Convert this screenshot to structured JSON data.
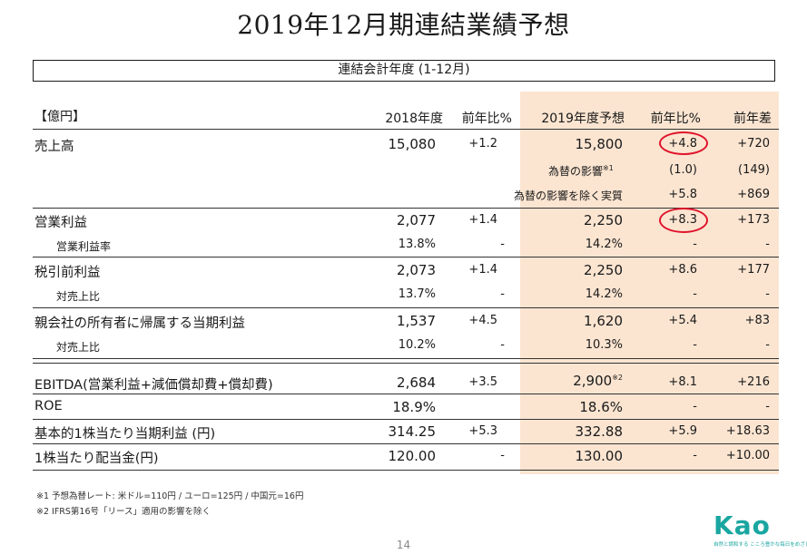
{
  "title": "2019年12月期連結業績予想",
  "period": "連結会計年度 (1-12月)",
  "unit": "【億円】",
  "columns": [
    "2018年度",
    "前年比%",
    "2019年度予想",
    "前年比%",
    "前年差"
  ],
  "rows": {
    "sales": {
      "label": "売上高",
      "y2018": "15,080",
      "yoy2018": "+1.2",
      "f2019": "15,800",
      "yoy": "+4.8",
      "diff": "+720"
    },
    "fx": {
      "label": "為替の影響",
      "note": "※1",
      "yoy": "(1.0)",
      "diff": "(149)"
    },
    "exfx": {
      "label": "為替の影響を除く実質",
      "yoy": "+5.8",
      "diff": "+869"
    },
    "op": {
      "label": "営業利益",
      "y2018": "2,077",
      "yoy2018": "+1.4",
      "f2019": "2,250",
      "yoy": "+8.3",
      "diff": "+173"
    },
    "opm": {
      "label": "営業利益率",
      "y2018": "13.8%",
      "yoy2018": "-",
      "f2019": "14.2%",
      "yoy": "-",
      "diff": "-"
    },
    "pbt": {
      "label": "税引前利益",
      "y2018": "2,073",
      "yoy2018": "+1.4",
      "f2019": "2,250",
      "yoy": "+8.6",
      "diff": "+177"
    },
    "pbtr": {
      "label": "対売上比",
      "y2018": "13.7%",
      "yoy2018": "-",
      "f2019": "14.2%",
      "yoy": "-",
      "diff": "-"
    },
    "ni": {
      "label": "親会社の所有者に帰属する当期利益",
      "y2018": "1,537",
      "yoy2018": "+4.5",
      "f2019": "1,620",
      "yoy": "+5.4",
      "diff": "+83"
    },
    "nir": {
      "label": "対売上比",
      "y2018": "10.2%",
      "yoy2018": "-",
      "f2019": "10.3%",
      "yoy": "-",
      "diff": "-"
    },
    "ebitda": {
      "label": "EBITDA(営業利益+減価償却費+償却費)",
      "y2018": "2,684",
      "yoy2018": "+3.5",
      "f2019": "2,900",
      "note": "※2",
      "yoy": "+8.1",
      "diff": "+216"
    },
    "roe": {
      "label": "ROE",
      "y2018": "18.9%",
      "yoy2018": "",
      "f2019": "18.6%",
      "yoy": "-",
      "diff": "-"
    },
    "eps": {
      "label": "基本的1株当たり当期利益 (円)",
      "y2018": "314.25",
      "yoy2018": "+5.3",
      "f2019": "332.88",
      "yoy": "+5.9",
      "diff": "+18.63"
    },
    "dps": {
      "label": "1株当たり配当金(円)",
      "y2018": "120.00",
      "yoy2018": "-",
      "f2019": "130.00",
      "yoy": "-",
      "diff": "+10.00"
    }
  },
  "notes": [
    "※1 予想為替レート: 米ドル=110円 / ユーロ=125円 / 中国元=16円",
    "※2 IFRS第16号「リース」適用の影響を除く"
  ],
  "page_number": "14",
  "logo": {
    "word": "Kao",
    "tagline": "自然と調和する こころ豊かな毎日をめざして"
  },
  "colors": {
    "highlight_bg": "#fbe5d1",
    "circle": "#e0142b",
    "brand": "#1aa6a0"
  }
}
